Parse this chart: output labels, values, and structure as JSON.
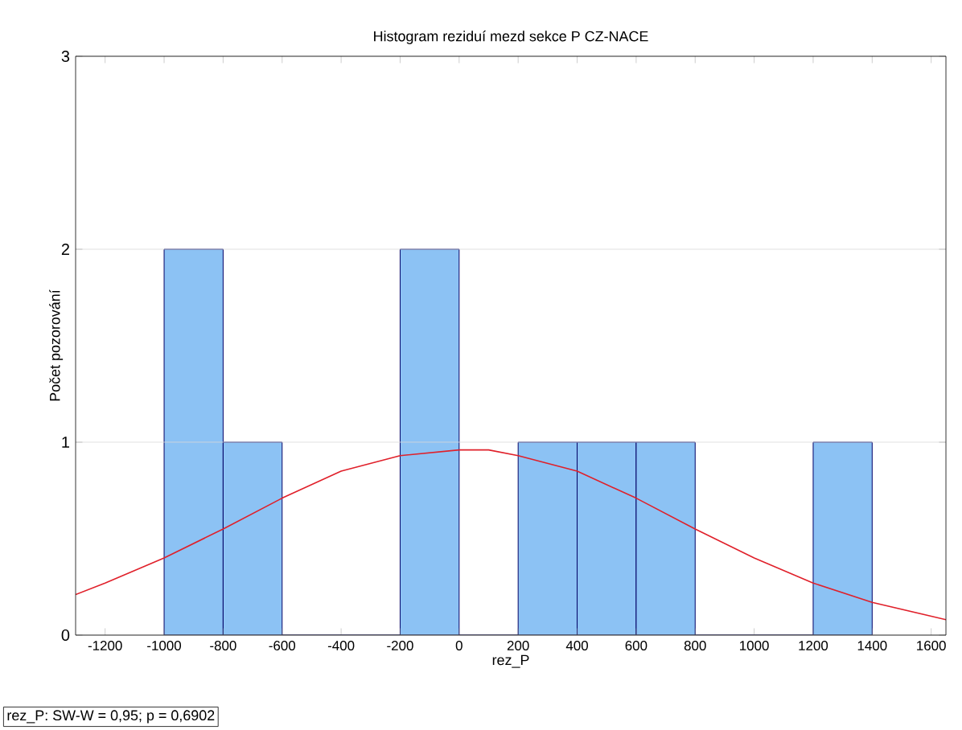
{
  "chart_data": {
    "type": "histogram",
    "title": "Histogram reziduí mezd sekce P CZ-NACE",
    "xlabel": "rez_P",
    "ylabel": "Počet pozorování",
    "bins": [
      -1000,
      -800,
      -600,
      -400,
      -200,
      0,
      200,
      400,
      600,
      800,
      1000,
      1200,
      1400
    ],
    "values": [
      2,
      1,
      0,
      0,
      2,
      0,
      1,
      1,
      1,
      0,
      0,
      1
    ],
    "color": "#8cc2f4",
    "series": [
      {
        "type": "line",
        "color": "#e0202a",
        "x": [
          -1300,
          -1200,
          -1000,
          -800,
          -600,
          -400,
          -200,
          0,
          100,
          200,
          400,
          600,
          800,
          1000,
          1200,
          1400,
          1650
        ],
        "values": [
          0.21,
          0.27,
          0.4,
          0.55,
          0.71,
          0.85,
          0.93,
          0.96,
          0.96,
          0.93,
          0.85,
          0.71,
          0.55,
          0.4,
          0.27,
          0.17,
          0.08
        ]
      }
    ],
    "xlim": [
      -1300,
      1650
    ],
    "ylim": [
      0,
      3
    ],
    "xticks": [
      -1200,
      -1000,
      -800,
      -600,
      -400,
      -200,
      0,
      200,
      400,
      600,
      800,
      1000,
      1200,
      1400,
      1600
    ],
    "yticks": [
      0,
      1,
      2,
      3
    ],
    "grid": "y",
    "marker": "none",
    "line_style": "solid",
    "annotations": [
      "rez_P:   SW-W = 0,95; p = 0,6902"
    ]
  }
}
